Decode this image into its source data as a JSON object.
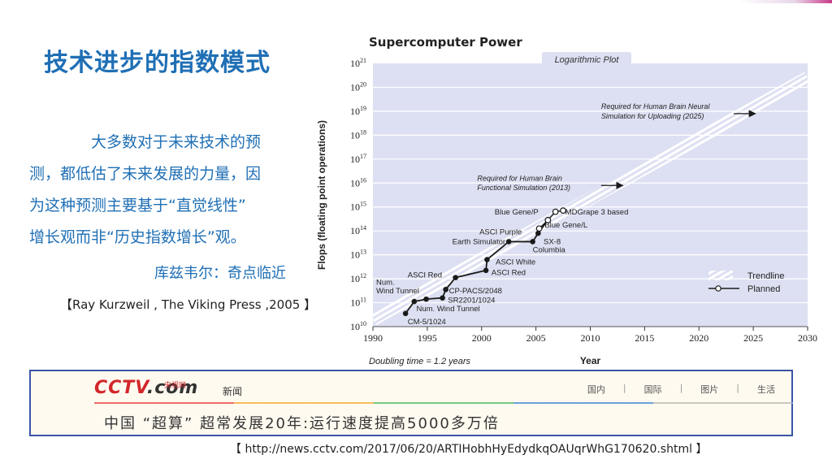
{
  "slide": {
    "title": "技术进步的指数模式",
    "paragraph_lines": [
      "大多数对于未来技术的预",
      "测，都低估了未来发展的力量，因",
      "为这种预测主要基于“直觉线性”",
      "增长观而非“历史指数增长”观。"
    ],
    "author": "库兹韦尔：奇点临近",
    "reference": "【Ray Kurzweil , The Viking Press ,2005 】",
    "url": "【 http://news.cctv.com/2017/06/20/ARTIHobhHyEdydkqOAUqrWhG170620.shtml 】"
  },
  "cctv": {
    "logo_text_a": "CCTV",
    "logo_text_b": ".com",
    "logo_sub": "央视网",
    "section": "新闻",
    "nav": [
      "国内",
      "国际",
      "图片",
      "生活"
    ],
    "headline": "中国 “超算” 超常发展20年:运行速度提高5000多万倍"
  },
  "colors": {
    "title_blue": "#1f6fb5",
    "plot_bg": "#dde0f2",
    "grid": "#ffffff",
    "trend": "#ffffff",
    "line": "#1a1a1a"
  },
  "chart_data": {
    "type": "line",
    "title": "Supercomputer Power",
    "subtitle": "Logarithmic Plot",
    "xlabel": "Year",
    "ylabel": "Flops (floating point operations)",
    "xlim": [
      1990,
      2030
    ],
    "ylim_exp": [
      10,
      21
    ],
    "x_ticks": [
      1990,
      1995,
      2000,
      2005,
      2010,
      2015,
      2020,
      2025,
      2030
    ],
    "y_ticks_exp": [
      10,
      11,
      12,
      13,
      14,
      15,
      16,
      17,
      18,
      19,
      20,
      21
    ],
    "footnote": "Doubling time = 1.2 years",
    "legend": {
      "position": "bottom-right",
      "trendline": "Trendline",
      "planned": "Planned"
    },
    "trendline": {
      "from": [
        1990,
        10.3
      ],
      "to": [
        2030,
        20.4
      ]
    },
    "actual_series": [
      {
        "x": 1993.0,
        "y_exp": 10.55
      },
      {
        "x": 1993.8,
        "y_exp": 11.05
      },
      {
        "x": 1994.9,
        "y_exp": 11.15
      },
      {
        "x": 1996.4,
        "y_exp": 11.2
      },
      {
        "x": 1996.7,
        "y_exp": 11.55
      },
      {
        "x": 1997.6,
        "y_exp": 12.05
      },
      {
        "x": 2000.4,
        "y_exp": 12.35
      },
      {
        "x": 2000.5,
        "y_exp": 12.8
      },
      {
        "x": 2002.5,
        "y_exp": 13.55
      },
      {
        "x": 2004.7,
        "y_exp": 13.55
      },
      {
        "x": 2005.2,
        "y_exp": 13.9
      },
      {
        "x": 2006.1,
        "y_exp": 14.45
      }
    ],
    "planned_series": [
      {
        "x": 2005.2,
        "y_exp": 13.9
      },
      {
        "x": 2005.3,
        "y_exp": 14.1
      },
      {
        "x": 2006.1,
        "y_exp": 14.45
      },
      {
        "x": 2006.8,
        "y_exp": 14.8
      },
      {
        "x": 2007.5,
        "y_exp": 14.85
      }
    ],
    "annotations": [
      {
        "text": "CM-5/1024",
        "x": 1993.2,
        "y_exp": 10.2
      },
      {
        "text": "Num. Wind Tunnel",
        "x": 1994.0,
        "y_exp": 10.75
      },
      {
        "text": "SR2201/1024",
        "x": 1996.9,
        "y_exp": 11.1
      },
      {
        "text": "CP-PACS/2048",
        "x": 1997.0,
        "y_exp": 11.5
      },
      {
        "text": "Num.",
        "x": 1990.3,
        "y_exp": 11.85
      },
      {
        "text": "Wind Tunnel",
        "x": 1990.3,
        "y_exp": 11.5
      },
      {
        "text": "ASCI Red",
        "x": 1993.2,
        "y_exp": 12.15
      },
      {
        "text": "ASCI Red",
        "x": 2000.9,
        "y_exp": 12.25
      },
      {
        "text": "ASCI White",
        "x": 2001.3,
        "y_exp": 12.7
      },
      {
        "text": "Earth Simulator",
        "x": 1997.3,
        "y_exp": 13.55
      },
      {
        "text": "SX-8",
        "x": 2005.7,
        "y_exp": 13.55
      },
      {
        "text": "Columbia",
        "x": 2004.7,
        "y_exp": 13.2
      },
      {
        "text": "ASCI Purple",
        "x": 1999.8,
        "y_exp": 13.95
      },
      {
        "text": "Blue Gene/L",
        "x": 2005.8,
        "y_exp": 14.25
      },
      {
        "text": "Blue Gene/P",
        "x": 2001.2,
        "y_exp": 14.78
      },
      {
        "text": "MDGrape 3 based",
        "x": 2007.7,
        "y_exp": 14.78
      },
      {
        "text": "Required for Human Brain",
        "x": 1999.6,
        "y_exp": 16.2
      },
      {
        "text": "Functional Simulation (2013)",
        "x": 1999.6,
        "y_exp": 15.8
      },
      {
        "text": "Required for Human Brain Neural",
        "x": 2011.0,
        "y_exp": 19.2
      },
      {
        "text": "Simulation for Uploading (2025)",
        "x": 2011.0,
        "y_exp": 18.8
      }
    ],
    "arrows": [
      {
        "from": [
          2011.0,
          15.9
        ],
        "to": [
          2013.0,
          15.9
        ]
      },
      {
        "from": [
          2023.2,
          18.9
        ],
        "to": [
          2025.2,
          18.9
        ]
      }
    ]
  }
}
